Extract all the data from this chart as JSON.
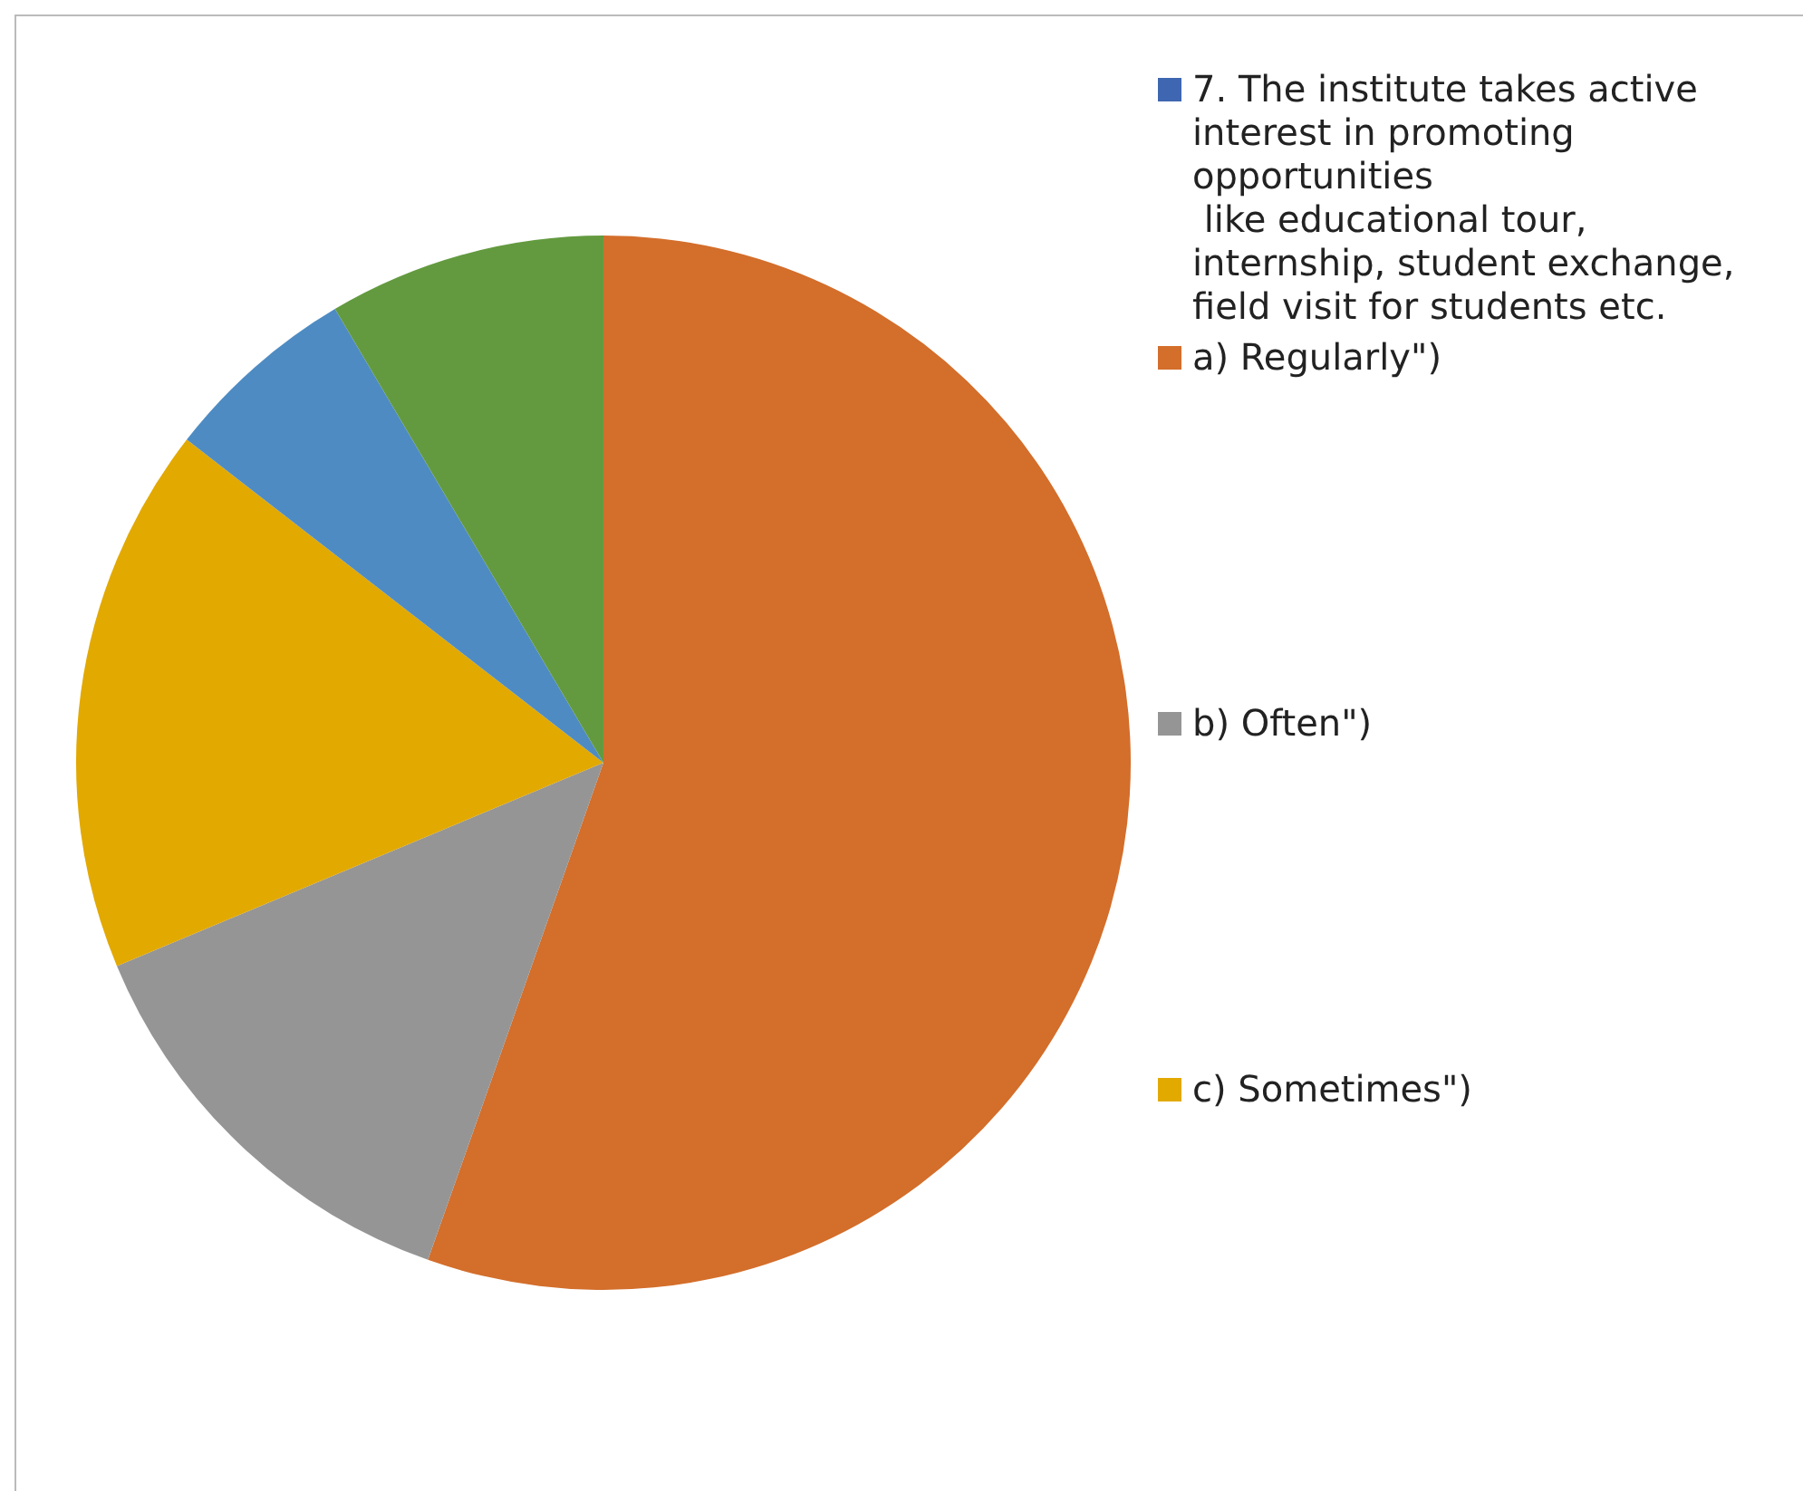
{
  "chart_data": {
    "type": "pie",
    "categories": [
      "7. The institute takes active interest in promoting opportunities\n like educational tour, internship, student exchange, field visit for students etc.",
      "a) Regularly\")",
      "b) Often\")",
      "c) Sometimes\")",
      null,
      null
    ],
    "values": [
      0,
      55.4,
      13.3,
      16.8,
      6.0,
      8.5
    ],
    "colors": [
      "#3f67b1",
      "#d36e2b",
      "#959595",
      "#e2a900",
      "#4e8bc3",
      "#639a3f"
    ],
    "legend": "right"
  }
}
